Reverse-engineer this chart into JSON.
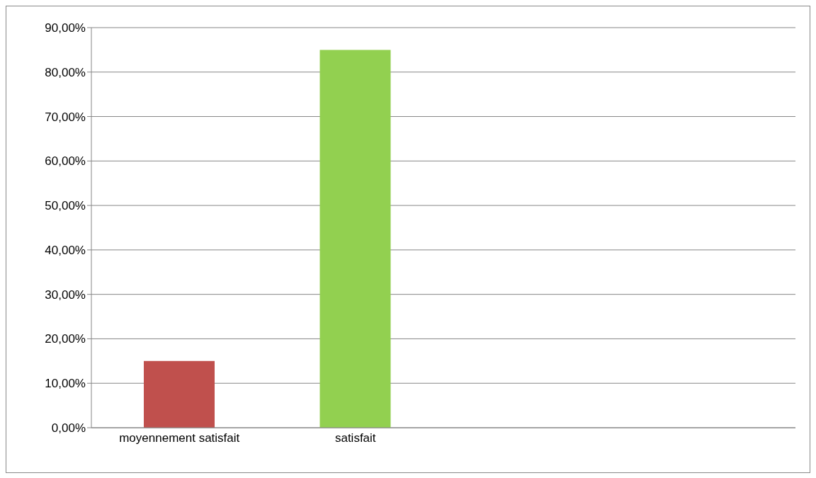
{
  "chart_data": {
    "type": "bar",
    "categories": [
      "moyennement satisfait",
      "satisfait",
      null,
      null
    ],
    "values": [
      15,
      85,
      null,
      null
    ],
    "colors": [
      "#c0504d",
      "#92d050",
      null,
      null
    ],
    "ylim": [
      0,
      90
    ],
    "yticks": [
      {
        "value": 0,
        "label": "0,00%"
      },
      {
        "value": 10,
        "label": "10,00%"
      },
      {
        "value": 20,
        "label": "20,00%"
      },
      {
        "value": 30,
        "label": "30,00%"
      },
      {
        "value": 40,
        "label": "40,00%"
      },
      {
        "value": 50,
        "label": "50,00%"
      },
      {
        "value": 60,
        "label": "60,00%"
      },
      {
        "value": 70,
        "label": "70,00%"
      },
      {
        "value": 80,
        "label": "80,00%"
      },
      {
        "value": 90,
        "label": "90,00%"
      }
    ],
    "grid": "y"
  }
}
